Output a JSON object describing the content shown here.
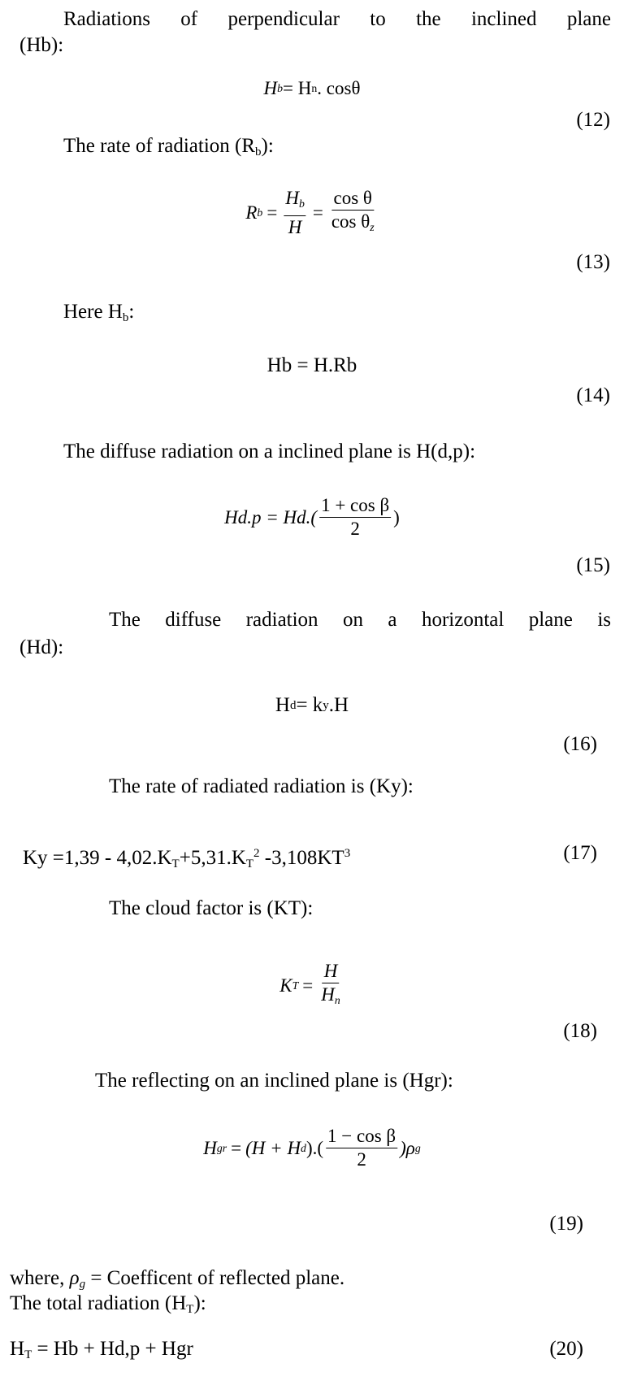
{
  "p1": {
    "line1": "Radiations of perpendicular to the inclined plane",
    "line2": "(Hb):"
  },
  "eq12": {
    "lhs": "H",
    "lhs_sub": "b",
    "eq": " = H",
    "n_sub": "n",
    "rest": ". cosθ",
    "num": "(12)"
  },
  "p2": {
    "text": "The rate of radiation (R",
    "sub": "b",
    "end": "):"
  },
  "eq13": {
    "lhs": "R",
    "lhs_sub": "b",
    "f1_top": "H",
    "f1_top_sub": "b",
    "f1_bot": "H",
    "f2_top": "cos θ",
    "f2_bot": "cos θ",
    "f2_bot_sub": "z",
    "num": "(13)"
  },
  "p3": {
    "text": "Here H",
    "sub": "b",
    "end": ":"
  },
  "eq14": {
    "text": "Hb = H.Rb",
    "num": "(14)"
  },
  "p4": {
    "text": "The diffuse radiation on a inclined plane is H(d,p):"
  },
  "eq15": {
    "lhs": "Hd.p = Hd.(",
    "top": "1 + cos β",
    "bot": "2",
    "end": ")",
    "num": "(15)"
  },
  "p5": {
    "line1": "The diffuse radiation on a horizontal plane is",
    "line2": "(Hd):"
  },
  "eq16": {
    "h": "H",
    "h_sub": "d",
    "mid": " = k",
    "k_sub": "y",
    "end": ".H",
    "num": "(16)"
  },
  "p6": {
    "text": "The rate of radiated radiation is (Ky):"
  },
  "eq17": {
    "a": "Ky =1,39 - 4,02.K",
    "s1": "T",
    "b": "+5,31.K",
    "s2": "T",
    "sup2": "2",
    "c": " -3,108KT",
    "sup3": "3",
    "num": "(17)"
  },
  "p7": {
    "text": "The cloud factor is (KT):"
  },
  "eq18": {
    "lhs": "K",
    "lhs_sub": "T",
    "top": "H",
    "bot": "H",
    "bot_sub": "n",
    "num": "(18)"
  },
  "p8": {
    "text": "The reflecting on an inclined plane is (Hgr):"
  },
  "eq19": {
    "lhs": "H",
    "lhs_sub": "gr",
    "mid": "(H + H",
    "d_sub": "d",
    "mid2": ").(",
    "top": "1 − cos β",
    "bot": "2",
    "end": ")ρ",
    "g_sub": "g",
    "num": "(19)"
  },
  "where": {
    "a": "where, ",
    "rho": "ρ",
    "g": "g",
    "b": " = Coefficent of reflected plane."
  },
  "p9": {
    "text": "The total radiation (H",
    "sub": "T",
    "end": "):"
  },
  "eq20": {
    "h": "H",
    "sub": "T",
    "rest": " = Hb + Hd,p + Hgr",
    "num": "(20)"
  }
}
